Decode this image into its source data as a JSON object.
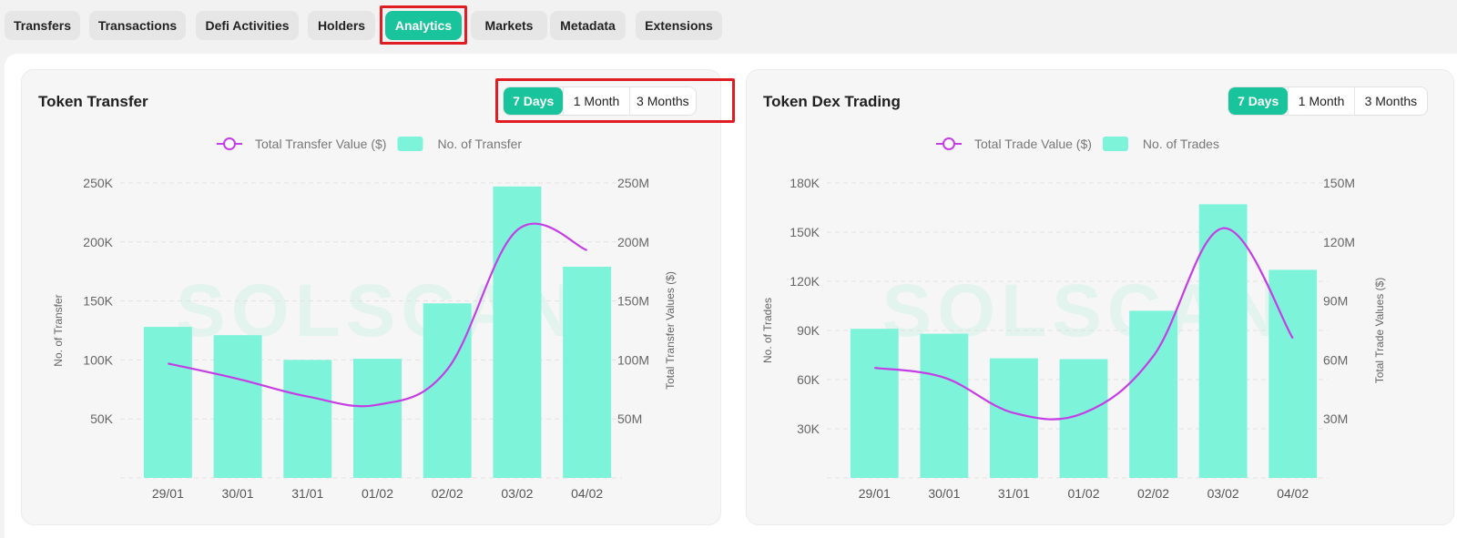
{
  "tabs": [
    {
      "label": "Transfers",
      "active": false
    },
    {
      "label": "Transactions",
      "active": false
    },
    {
      "label": "Defi Activities",
      "active": false
    },
    {
      "label": "Holders",
      "active": false
    },
    {
      "label": "Analytics",
      "active": true
    },
    {
      "label": "Markets",
      "active": false
    },
    {
      "label": "Metadata",
      "active": false
    },
    {
      "label": "Extensions",
      "active": false
    }
  ],
  "colors": {
    "accent": "#19c39b",
    "bar": "#7df3d9",
    "line": "#c53de6",
    "highlight": "#e11d24"
  },
  "watermark": "SOLSCAN",
  "cards": [
    {
      "title": "Token Transfer",
      "ranges": [
        "7 Days",
        "1 Month",
        "3 Months"
      ],
      "selected_range": "7 Days"
    },
    {
      "title": "Token Dex Trading",
      "ranges": [
        "7 Days",
        "1 Month",
        "3 Months"
      ],
      "selected_range": "7 Days"
    }
  ],
  "chart_data": [
    {
      "type": "bar",
      "categories": [
        "29/01",
        "30/01",
        "31/01",
        "01/02",
        "02/02",
        "03/02",
        "04/02"
      ],
      "series": [
        {
          "name": "No. of Transfer",
          "type": "bar",
          "axis": "left",
          "values": [
            128000,
            121000,
            100000,
            101000,
            148000,
            247000,
            179000
          ]
        },
        {
          "name": "Total Transfer Value ($)",
          "type": "line",
          "axis": "right",
          "values": [
            97000000,
            84000000,
            69000000,
            62000000,
            92000000,
            210000000,
            193000000
          ]
        }
      ],
      "ylabel": "No. of Transfer",
      "y2label": "Total Transfer Values ($)",
      "ylim": [
        0,
        250000
      ],
      "y2lim": [
        0,
        250000000
      ],
      "yticks": [
        "50K",
        "100K",
        "150K",
        "200K",
        "250K"
      ],
      "y2ticks": [
        "50M",
        "100M",
        "150M",
        "200M",
        "250M"
      ],
      "grid": true,
      "legend": "top-center"
    },
    {
      "type": "bar",
      "categories": [
        "29/01",
        "30/01",
        "31/01",
        "01/02",
        "02/02",
        "03/02",
        "04/02"
      ],
      "series": [
        {
          "name": "No. of Trades",
          "type": "bar",
          "axis": "left",
          "values": [
            91000,
            88000,
            73000,
            72500,
            102000,
            167000,
            127000
          ]
        },
        {
          "name": "Total Trade Value ($)",
          "type": "line",
          "axis": "right",
          "values": [
            56000000,
            51000000,
            33000000,
            33000000,
            62000000,
            127000000,
            71000000
          ]
        }
      ],
      "ylabel": "No. of Trades",
      "y2label": "Total Trade Values ($)",
      "ylim": [
        0,
        180000
      ],
      "y2lim": [
        0,
        150000000
      ],
      "yticks": [
        "30K",
        "60K",
        "90K",
        "120K",
        "150K",
        "180K"
      ],
      "y2ticks": [
        "30M",
        "60M",
        "90M",
        "120M",
        "150M"
      ],
      "grid": true,
      "legend": "top-center"
    }
  ]
}
